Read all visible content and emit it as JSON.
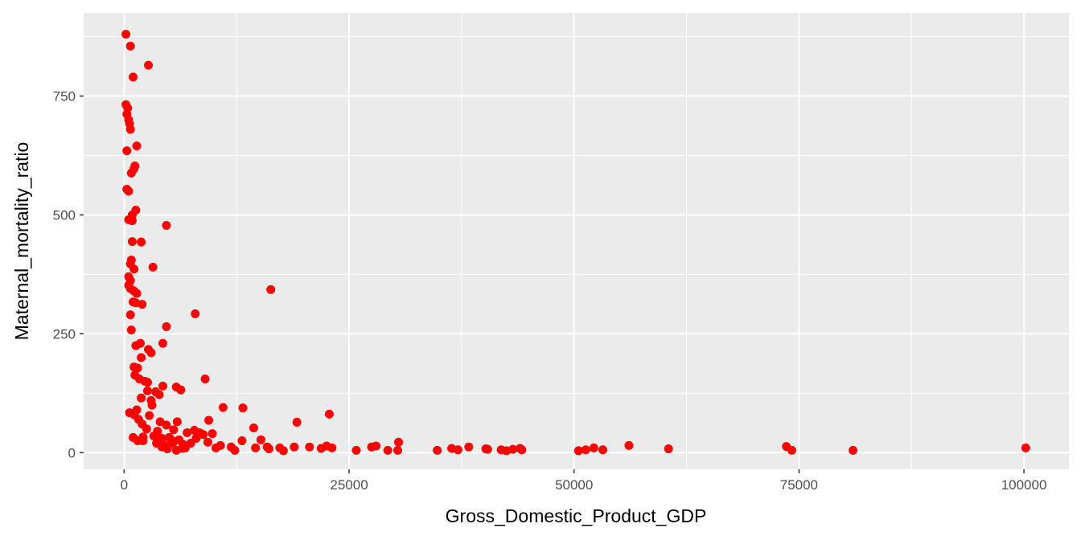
{
  "chart_data": {
    "type": "scatter",
    "xlabel": "Gross_Domestic_Product_GDP",
    "ylabel": "Maternal_mortality_ratio",
    "xlim": [
      -4500,
      105000
    ],
    "ylim": [
      -35,
      925
    ],
    "x_ticks": [
      0,
      25000,
      50000,
      75000,
      100000
    ],
    "x_tick_labels": [
      "0",
      "25000",
      "50000",
      "75000",
      "100000"
    ],
    "y_ticks": [
      0,
      250,
      500,
      750
    ],
    "y_tick_labels": [
      "0",
      "250",
      "500",
      "750"
    ],
    "grid": true,
    "panel_color": "#ebebeb",
    "point_color": "#ff0000",
    "points": [
      [
        200,
        880
      ],
      [
        700,
        855
      ],
      [
        1000,
        790
      ],
      [
        2700,
        815
      ],
      [
        200,
        732
      ],
      [
        400,
        725
      ],
      [
        300,
        712
      ],
      [
        500,
        700
      ],
      [
        600,
        692
      ],
      [
        700,
        680
      ],
      [
        1400,
        645
      ],
      [
        300,
        635
      ],
      [
        1200,
        603
      ],
      [
        1100,
        597
      ],
      [
        800,
        588
      ],
      [
        300,
        554
      ],
      [
        500,
        550
      ],
      [
        1300,
        510
      ],
      [
        900,
        500
      ],
      [
        500,
        490
      ],
      [
        900,
        488
      ],
      [
        4700,
        478
      ],
      [
        900,
        444
      ],
      [
        1900,
        443
      ],
      [
        800,
        405
      ],
      [
        700,
        397
      ],
      [
        1100,
        386
      ],
      [
        3200,
        390
      ],
      [
        500,
        370
      ],
      [
        700,
        362
      ],
      [
        500,
        352
      ],
      [
        700,
        345
      ],
      [
        1100,
        340
      ],
      [
        1400,
        335
      ],
      [
        1000,
        317
      ],
      [
        1300,
        315
      ],
      [
        2000,
        312
      ],
      [
        16300,
        343
      ],
      [
        700,
        290
      ],
      [
        7900,
        292
      ],
      [
        4700,
        265
      ],
      [
        800,
        258
      ],
      [
        1800,
        230
      ],
      [
        4300,
        230
      ],
      [
        1300,
        225
      ],
      [
        2700,
        217
      ],
      [
        3000,
        210
      ],
      [
        1900,
        200
      ],
      [
        1100,
        180
      ],
      [
        1500,
        178
      ],
      [
        1200,
        163
      ],
      [
        1700,
        155
      ],
      [
        2300,
        150
      ],
      [
        2600,
        148
      ],
      [
        4300,
        140
      ],
      [
        5800,
        138
      ],
      [
        6300,
        132
      ],
      [
        9000,
        155
      ],
      [
        2600,
        130
      ],
      [
        3500,
        128
      ],
      [
        3900,
        122
      ],
      [
        1900,
        115
      ],
      [
        3000,
        110
      ],
      [
        3100,
        100
      ],
      [
        11000,
        95
      ],
      [
        13200,
        94
      ],
      [
        19200,
        64
      ],
      [
        22800,
        81
      ],
      [
        600,
        84
      ],
      [
        1400,
        90
      ],
      [
        1100,
        80
      ],
      [
        2800,
        78
      ],
      [
        1600,
        70
      ],
      [
        9400,
        68
      ],
      [
        2000,
        60
      ],
      [
        4000,
        65
      ],
      [
        4700,
        58
      ],
      [
        5900,
        65
      ],
      [
        2500,
        50
      ],
      [
        3700,
        45
      ],
      [
        5500,
        48
      ],
      [
        7800,
        47
      ],
      [
        14400,
        52
      ],
      [
        8400,
        42
      ],
      [
        1000,
        32
      ],
      [
        2100,
        33
      ],
      [
        3300,
        35
      ],
      [
        4200,
        30
      ],
      [
        5200,
        28
      ],
      [
        6100,
        27
      ],
      [
        7000,
        42
      ],
      [
        8800,
        38
      ],
      [
        9800,
        40
      ],
      [
        1500,
        25
      ],
      [
        2100,
        25
      ],
      [
        3900,
        22
      ],
      [
        4500,
        15
      ],
      [
        5400,
        20
      ],
      [
        6500,
        18
      ],
      [
        7400,
        20
      ],
      [
        9300,
        22
      ],
      [
        10700,
        15
      ],
      [
        11900,
        12
      ],
      [
        13100,
        25
      ],
      [
        14600,
        10
      ],
      [
        15200,
        27
      ],
      [
        16100,
        8
      ],
      [
        17300,
        10
      ],
      [
        18900,
        12
      ],
      [
        20600,
        12
      ],
      [
        21900,
        9
      ],
      [
        22500,
        14
      ],
      [
        23100,
        10
      ],
      [
        25800,
        5
      ],
      [
        27500,
        12
      ],
      [
        28000,
        14
      ],
      [
        29300,
        5
      ],
      [
        30400,
        5
      ],
      [
        30500,
        22
      ],
      [
        34800,
        5
      ],
      [
        36400,
        9
      ],
      [
        37100,
        6
      ],
      [
        38300,
        12
      ],
      [
        40200,
        8
      ],
      [
        40400,
        7
      ],
      [
        41900,
        6
      ],
      [
        42500,
        4
      ],
      [
        43200,
        7
      ],
      [
        44000,
        9
      ],
      [
        44200,
        6
      ],
      [
        50500,
        4
      ],
      [
        51300,
        6
      ],
      [
        52200,
        10
      ],
      [
        53200,
        6
      ],
      [
        56100,
        15
      ],
      [
        60500,
        8
      ],
      [
        73600,
        13
      ],
      [
        74200,
        5
      ],
      [
        81000,
        5
      ],
      [
        100200,
        10
      ],
      [
        4800,
        8
      ],
      [
        5800,
        5
      ],
      [
        6500,
        9
      ],
      [
        4200,
        12
      ],
      [
        12300,
        5
      ],
      [
        15900,
        12
      ],
      [
        17700,
        4
      ],
      [
        10200,
        10
      ],
      [
        3600,
        20
      ],
      [
        5000,
        32
      ],
      [
        6800,
        10
      ],
      [
        8000,
        30
      ]
    ]
  }
}
